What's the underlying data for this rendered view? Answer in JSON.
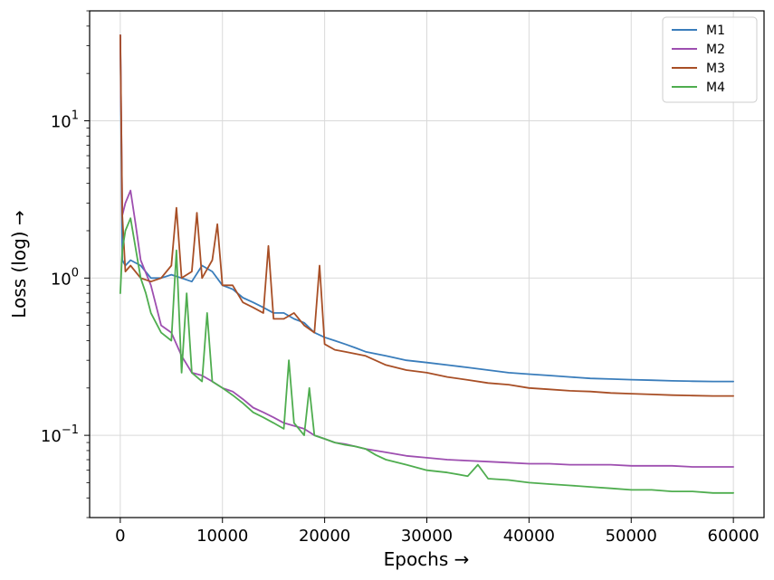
{
  "chart_data": {
    "type": "line",
    "title": "",
    "xlabel": "Epochs →",
    "ylabel": "Loss (log) →",
    "xlim": [
      -3000,
      63000
    ],
    "ylim": [
      0.03,
      50
    ],
    "yscale": "log",
    "grid": true,
    "legend_position": "top-right",
    "x_ticks": [
      0,
      10000,
      20000,
      30000,
      40000,
      50000,
      60000
    ],
    "x_tick_labels": [
      "0",
      "10000",
      "20000",
      "30000",
      "40000",
      "50000",
      "60000"
    ],
    "y_ticks": [
      0.1,
      1,
      10
    ],
    "y_tick_labels": [
      {
        "base": "10",
        "exp": "−1"
      },
      {
        "base": "10",
        "exp": "0"
      },
      {
        "base": "10",
        "exp": "1"
      }
    ],
    "series": [
      {
        "name": "M1",
        "color": "#3a7dbb",
        "x": [
          0,
          200,
          500,
          1000,
          2000,
          3000,
          4000,
          5000,
          6000,
          7000,
          8000,
          9000,
          10000,
          11000,
          12000,
          13000,
          14000,
          15000,
          16000,
          17000,
          18000,
          19000,
          20000,
          21000,
          22000,
          23000,
          24000,
          26000,
          28000,
          30000,
          32000,
          34000,
          36000,
          38000,
          40000,
          42000,
          44000,
          46000,
          48000,
          50000,
          52000,
          54000,
          56000,
          58000,
          60000
        ],
        "y": [
          35,
          1.3,
          1.2,
          1.3,
          1.2,
          1.0,
          1.0,
          1.05,
          1.0,
          0.95,
          1.2,
          1.1,
          0.9,
          0.85,
          0.75,
          0.7,
          0.65,
          0.6,
          0.6,
          0.55,
          0.52,
          0.45,
          0.42,
          0.4,
          0.38,
          0.36,
          0.34,
          0.32,
          0.3,
          0.29,
          0.28,
          0.27,
          0.26,
          0.25,
          0.245,
          0.24,
          0.235,
          0.23,
          0.228,
          0.226,
          0.224,
          0.222,
          0.221,
          0.22,
          0.22
        ]
      },
      {
        "name": "M2",
        "color": "#9e4fb0",
        "x": [
          0,
          200,
          500,
          1000,
          1500,
          2000,
          3000,
          4000,
          5000,
          6000,
          7000,
          8000,
          9000,
          10000,
          11000,
          12000,
          13000,
          14000,
          15000,
          16000,
          17000,
          18000,
          19000,
          20000,
          21000,
          22000,
          23000,
          24000,
          26000,
          28000,
          30000,
          32000,
          34000,
          36000,
          38000,
          40000,
          42000,
          44000,
          46000,
          48000,
          50000,
          52000,
          54000,
          56000,
          58000,
          60000
        ],
        "y": [
          35,
          2.5,
          3.0,
          3.6,
          2.2,
          1.3,
          0.9,
          0.5,
          0.45,
          0.32,
          0.25,
          0.24,
          0.22,
          0.2,
          0.19,
          0.17,
          0.15,
          0.14,
          0.13,
          0.12,
          0.115,
          0.11,
          0.1,
          0.095,
          0.09,
          0.088,
          0.085,
          0.082,
          0.078,
          0.074,
          0.072,
          0.07,
          0.069,
          0.068,
          0.067,
          0.066,
          0.066,
          0.065,
          0.065,
          0.065,
          0.064,
          0.064,
          0.064,
          0.063,
          0.063,
          0.063
        ]
      },
      {
        "name": "M3",
        "color": "#a84f26",
        "x": [
          0,
          200,
          500,
          1000,
          2000,
          3000,
          4000,
          5000,
          5500,
          6000,
          7000,
          7500,
          8000,
          9000,
          9500,
          10000,
          11000,
          12000,
          13000,
          14000,
          14500,
          15000,
          16000,
          17000,
          18000,
          19000,
          19500,
          20000,
          21000,
          22000,
          23000,
          24000,
          26000,
          28000,
          30000,
          32000,
          34000,
          36000,
          38000,
          40000,
          42000,
          44000,
          46000,
          48000,
          50000,
          52000,
          54000,
          56000,
          58000,
          60000
        ],
        "y": [
          35,
          2.5,
          1.1,
          1.2,
          1.0,
          0.95,
          1.0,
          1.2,
          2.8,
          1.0,
          1.1,
          2.6,
          1.0,
          1.3,
          2.2,
          0.9,
          0.9,
          0.7,
          0.65,
          0.6,
          1.6,
          0.55,
          0.55,
          0.6,
          0.5,
          0.45,
          1.2,
          0.38,
          0.35,
          0.34,
          0.33,
          0.32,
          0.28,
          0.26,
          0.25,
          0.235,
          0.225,
          0.215,
          0.21,
          0.2,
          0.196,
          0.192,
          0.19,
          0.186,
          0.184,
          0.182,
          0.18,
          0.179,
          0.178,
          0.178
        ]
      },
      {
        "name": "M4",
        "color": "#4fad4f",
        "x": [
          0,
          200,
          500,
          1000,
          2000,
          2500,
          3000,
          4000,
          5000,
          5500,
          6000,
          6500,
          7000,
          8000,
          8500,
          9000,
          10000,
          11000,
          12000,
          13000,
          14000,
          15000,
          16000,
          16500,
          17000,
          18000,
          18500,
          19000,
          20000,
          21000,
          22000,
          23000,
          24000,
          25000,
          26000,
          28000,
          30000,
          32000,
          34000,
          35000,
          36000,
          38000,
          40000,
          42000,
          44000,
          46000,
          48000,
          50000,
          52000,
          54000,
          56000,
          58000,
          60000
        ],
        "y": [
          0.8,
          1.5,
          2.0,
          2.4,
          1.0,
          0.8,
          0.6,
          0.45,
          0.4,
          1.5,
          0.25,
          0.8,
          0.25,
          0.22,
          0.6,
          0.22,
          0.2,
          0.18,
          0.16,
          0.14,
          0.13,
          0.12,
          0.11,
          0.3,
          0.12,
          0.1,
          0.2,
          0.1,
          0.095,
          0.09,
          0.087,
          0.085,
          0.082,
          0.075,
          0.07,
          0.065,
          0.06,
          0.058,
          0.055,
          0.065,
          0.053,
          0.052,
          0.05,
          0.049,
          0.048,
          0.047,
          0.046,
          0.045,
          0.045,
          0.044,
          0.044,
          0.043,
          0.043
        ]
      }
    ]
  }
}
